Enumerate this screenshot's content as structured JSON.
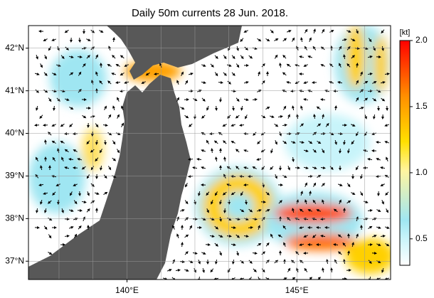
{
  "title": "Daily 50m currents 28 Jun. 2018.",
  "map": {
    "xlim": [
      137.1,
      147.76
    ],
    "ylim": [
      36.57,
      42.53
    ],
    "lat_ticks": [
      {
        "value": 42,
        "label": "42°N"
      },
      {
        "value": 41,
        "label": "41°N"
      },
      {
        "value": 40,
        "label": "40°N"
      },
      {
        "value": 39,
        "label": "39°N"
      },
      {
        "value": 38,
        "label": "38°N"
      },
      {
        "value": 37,
        "label": "37°N"
      }
    ],
    "lon_ticks": [
      {
        "value": 140,
        "label": "140°E"
      },
      {
        "value": 145,
        "label": "145°E"
      }
    ]
  },
  "colorbar": {
    "label": "[kt]",
    "lim": [
      0.3,
      2.0
    ],
    "ticks": [
      {
        "value": 2,
        "label": "2.0"
      },
      {
        "value": 1.5,
        "label": "1.5"
      },
      {
        "value": 1,
        "label": "1.0"
      },
      {
        "value": 0.5,
        "label": "0.5"
      }
    ]
  }
}
